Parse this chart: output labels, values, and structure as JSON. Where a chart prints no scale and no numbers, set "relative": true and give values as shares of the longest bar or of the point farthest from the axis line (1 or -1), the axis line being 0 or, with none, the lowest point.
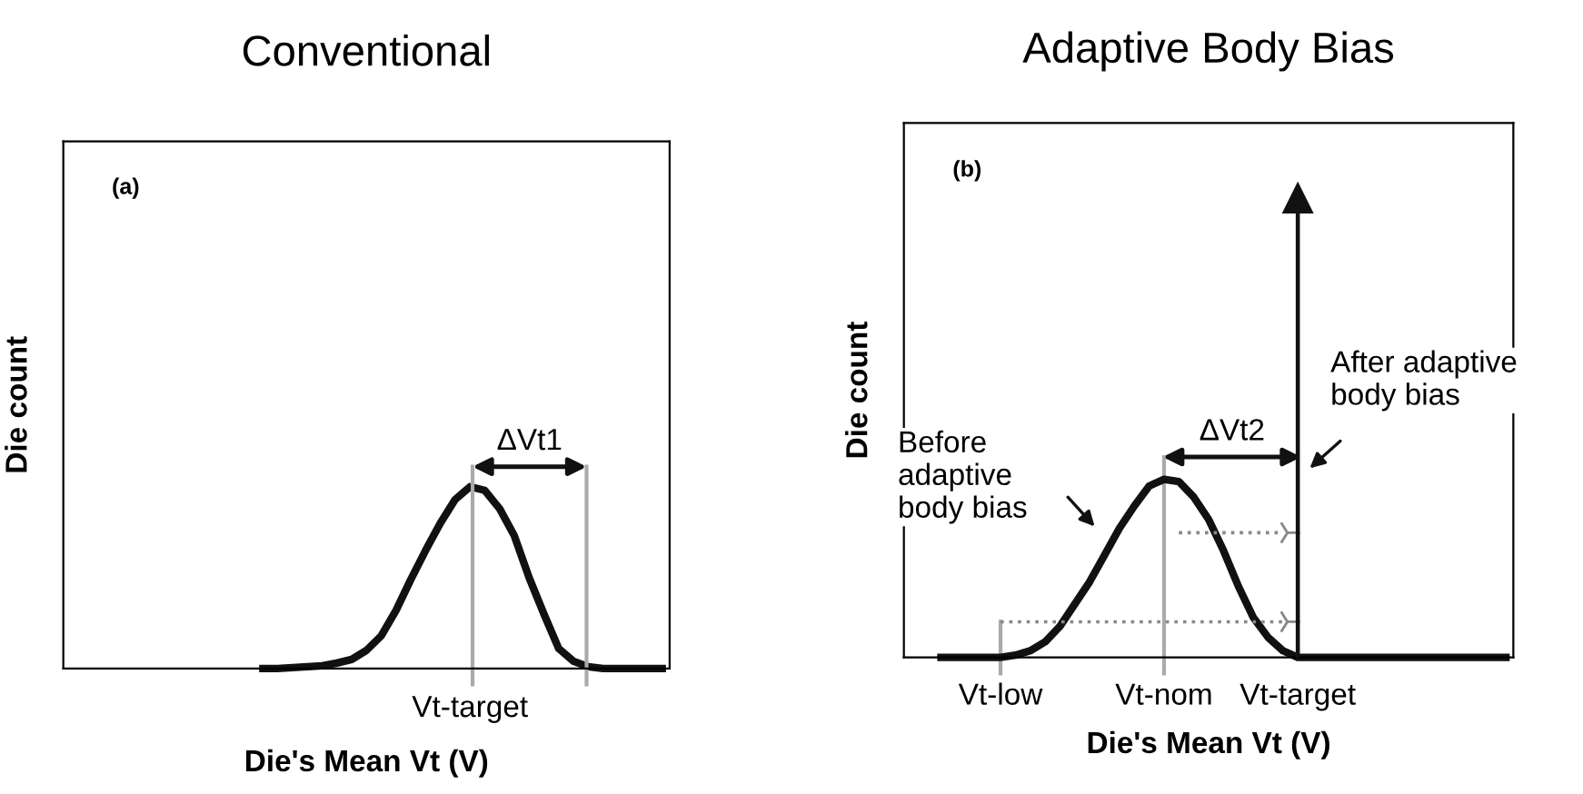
{
  "chart_data": [
    {
      "type": "line",
      "title": "Conventional",
      "xlabel": "Die's Mean Vt (V)",
      "ylabel": "Die count",
      "relative": true,
      "categories": [
        null,
        null,
        null,
        null,
        null,
        null,
        null,
        null,
        null,
        null,
        null,
        null,
        null,
        null,
        null,
        null,
        null,
        null,
        null,
        null,
        null,
        null,
        null,
        null,
        null,
        null,
        null,
        null
      ],
      "series": [
        {
          "color": "#111111",
          "values": [
            0,
            0,
            0.005,
            0.01,
            0.015,
            0.03,
            0.05,
            0.1,
            0.18,
            0.32,
            0.49,
            0.65,
            0.8,
            0.93,
            1,
            0.98,
            0.88,
            0.73,
            0.5,
            0.3,
            0.11,
            0.04,
            0.01,
            0,
            0,
            0,
            0,
            0
          ]
        }
      ],
      "annotations": [
        "(a)",
        "ΔVt1",
        "Vt-target"
      ]
    },
    {
      "type": "line",
      "title": "Adaptive Body Bias",
      "xlabel": "Die's Mean Vt (V)",
      "ylabel": "Die count",
      "relative": true,
      "categories": [
        null,
        null,
        null,
        null,
        null,
        null,
        "Vt-low",
        null,
        null,
        null,
        null,
        null,
        null,
        null,
        null,
        null,
        null,
        "Vt-nom",
        null,
        null,
        null,
        null,
        null,
        null,
        null,
        null,
        "Vt-target",
        null,
        null,
        null,
        null,
        null,
        null,
        null,
        null,
        null,
        null,
        null,
        null,
        null,
        null
      ],
      "series": [
        {
          "color": "#111111",
          "values": [
            null,
            null,
            0,
            0,
            0,
            0,
            0,
            0.005,
            0.015,
            0.035,
            0.07,
            0.12,
            0.17,
            0.23,
            0.29,
            0.34,
            0.385,
            0.4,
            0.395,
            0.36,
            0.31,
            0.24,
            0.16,
            0.09,
            0.045,
            0.015,
            0,
            0,
            0,
            0,
            0,
            0,
            0,
            0,
            0,
            0,
            0,
            0,
            0,
            0,
            0
          ]
        },
        {
          "type": "bar",
          "color": "#111111",
          "values": [
            null,
            null,
            null,
            null,
            null,
            null,
            null,
            null,
            null,
            null,
            null,
            null,
            null,
            null,
            null,
            null,
            null,
            null,
            null,
            null,
            null,
            null,
            null,
            null,
            null,
            null,
            1,
            null,
            null,
            null,
            null,
            null,
            null,
            null,
            null,
            null,
            null,
            null,
            null,
            null,
            null
          ]
        },
        {
          "color": "#888888",
          "line_style": "dotted",
          "values": [
            null,
            null,
            null,
            null,
            null,
            null,
            null,
            null,
            null,
            null,
            null,
            null,
            null,
            null,
            null,
            null,
            null,
            null,
            0.28,
            0.28,
            0.28,
            0.28,
            0.28,
            0.28,
            0.28,
            0.28,
            null,
            null,
            null,
            null,
            null,
            null,
            null,
            null,
            null,
            null,
            null,
            null,
            null,
            null,
            null
          ]
        },
        {
          "color": "#888888",
          "line_style": "dotted",
          "values": [
            null,
            null,
            null,
            null,
            null,
            null,
            0.08,
            0.08,
            0.08,
            0.08,
            0.08,
            0.08,
            0.08,
            0.08,
            0.08,
            0.08,
            0.08,
            0.08,
            0.08,
            0.08,
            0.08,
            0.08,
            0.08,
            0.08,
            0.08,
            0.08,
            null,
            null,
            null,
            null,
            null,
            null,
            null,
            null,
            null,
            null,
            null,
            null,
            null,
            null,
            null
          ]
        }
      ],
      "ref_lines": [
        {
          "axis": "x",
          "value": "Vt-low",
          "color": "#aaaaaa"
        },
        {
          "axis": "x",
          "value": "Vt-nom",
          "color": "#aaaaaa"
        }
      ],
      "annotations": [
        "(b)",
        "ΔVt2",
        "Before\nadaptive\nbody bias",
        "After adaptive\nbody bias"
      ]
    }
  ]
}
